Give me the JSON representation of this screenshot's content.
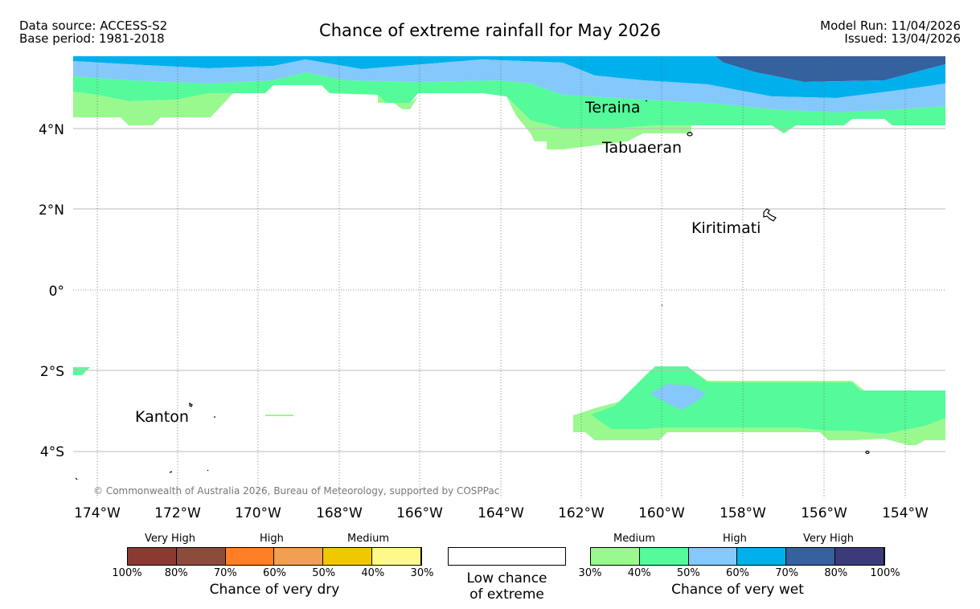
{
  "header": {
    "data_source": "Data source: ACCESS-S2",
    "base_period": "Base period: 1981-2018",
    "title": "Chance of extreme rainfall for May 2026",
    "model_run": "Model Run: 11/04/2026",
    "issued": "Issued: 13/04/2026"
  },
  "map": {
    "lat_labels": [
      "4°N",
      "2°N",
      "0°",
      "2°S",
      "4°S"
    ],
    "lon_labels": [
      "174°W",
      "172°W",
      "170°W",
      "168°W",
      "166°W",
      "164°W",
      "162°W",
      "160°W",
      "158°W",
      "156°W",
      "154°W"
    ],
    "places": [
      "Teraina",
      "Tabuaeran",
      "Kiritimati",
      "Kanton"
    ],
    "copyright": "© Commonwealth of Australia 2026, Bureau of Meteorology, supported by COSPPac"
  },
  "legend": {
    "dry": {
      "category_labels": [
        "Very High",
        "High",
        "Medium"
      ],
      "ticks": [
        "100%",
        "80%",
        "70%",
        "60%",
        "50%",
        "40%",
        "30%"
      ],
      "colors": [
        "#8b3a32",
        "#8b4c3b",
        "#ff7f27",
        "#f0a050",
        "#f0c800",
        "#fff98c"
      ],
      "caption": "Chance of very dry"
    },
    "low": {
      "caption_line1": "Low chance",
      "caption_line2": "of extreme"
    },
    "wet": {
      "category_labels": [
        "Medium",
        "High",
        "Very High"
      ],
      "ticks": [
        "30%",
        "40%",
        "50%",
        "60%",
        "70%",
        "80%",
        "100%"
      ],
      "colors": [
        "#99f98f",
        "#55fa9a",
        "#85c8fb",
        "#00b0ec",
        "#35619f",
        "#3c3b7a"
      ],
      "caption": "Chance of very wet"
    }
  }
}
